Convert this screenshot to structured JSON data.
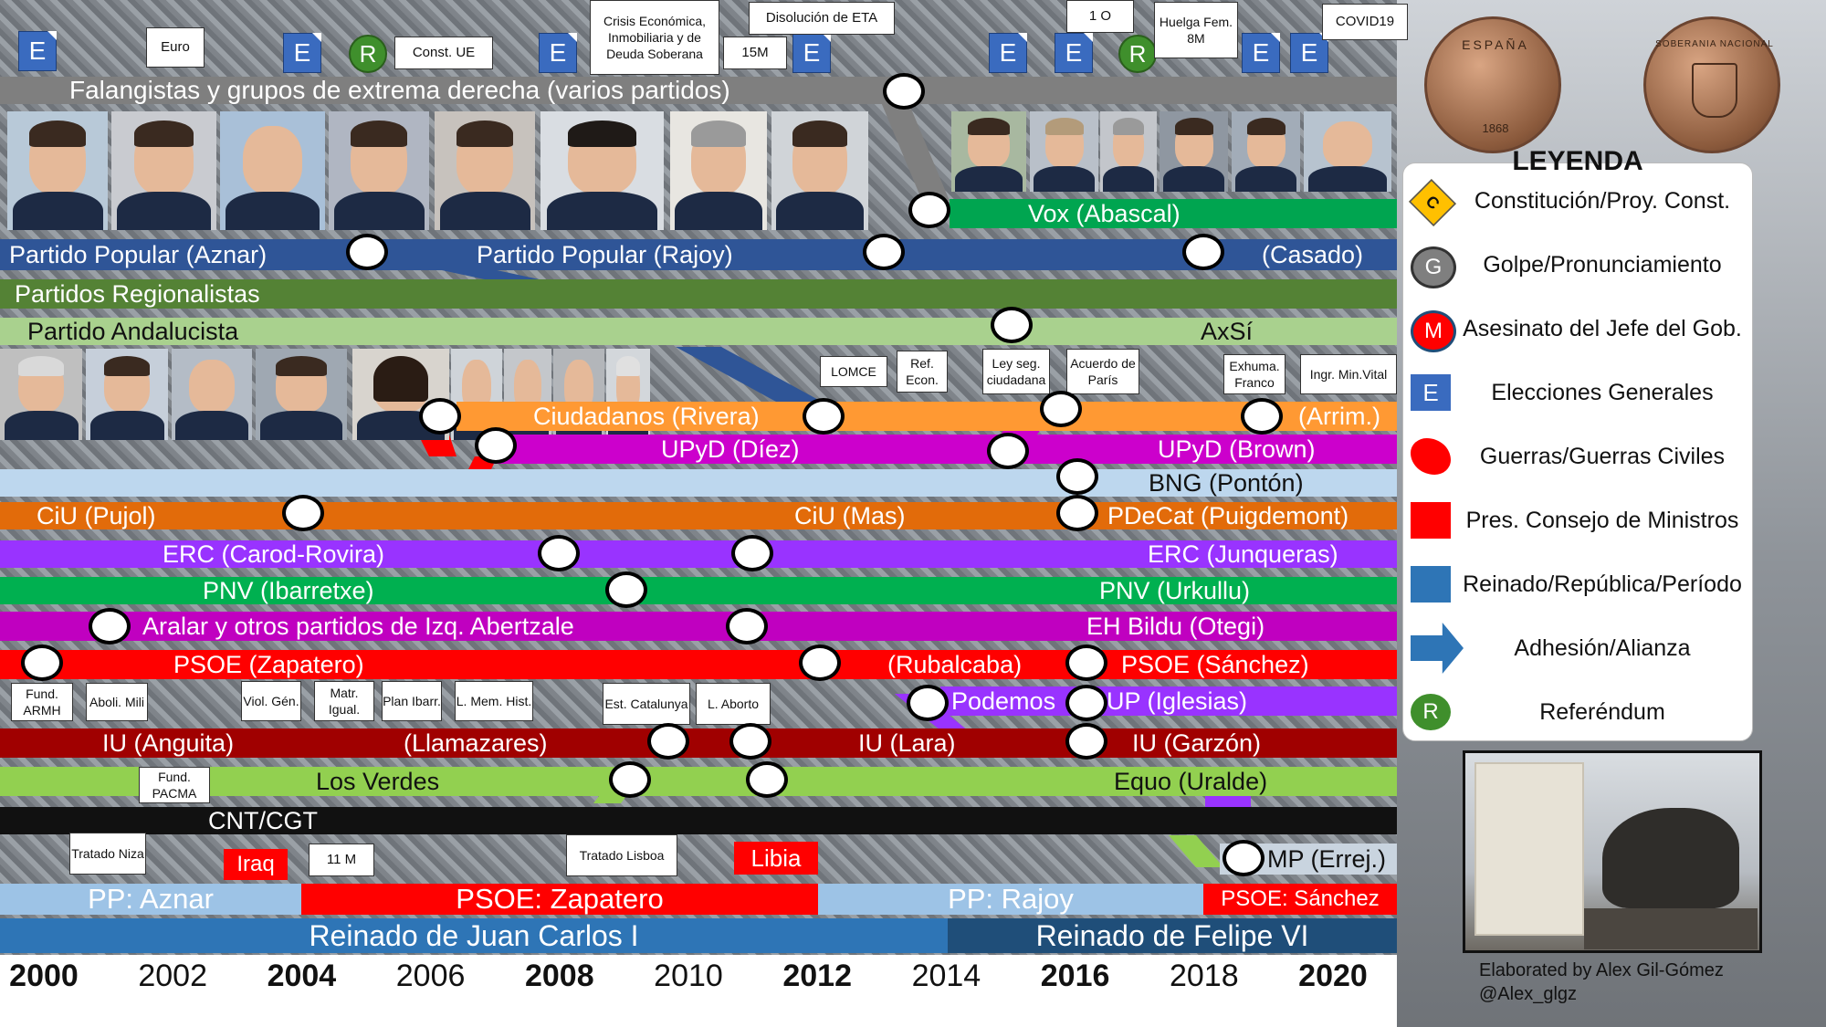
{
  "events_top": {
    "euro": "Euro",
    "const_ue": "Const. UE",
    "crisis": "Crisis Económica, Inmobiliaria y de Deuda Soberana",
    "eta": "Disolución de ETA",
    "m15": "15M",
    "o1": "1 O",
    "huelga": "Huelga Fem. 8M",
    "covid": "COVID19",
    "election_mark": "E",
    "referendum_mark": "R"
  },
  "bands": {
    "falangistas": "Falangistas y grupos de extrema derecha (varios partidos)",
    "vox": "Vox (Abascal)",
    "pp_aznar": "Partido Popular (Aznar)",
    "pp_rajoy": "Partido Popular (Rajoy)",
    "pp_casado": "(Casado)",
    "regionalistas": "Partidos Regionalistas",
    "andalucista": "Partido Andalucista",
    "axsi": "AxSí",
    "ciudadanos": "Ciudadanos (Rivera)",
    "arrim": "(Arrim.)",
    "upyd_diez": "UPyD (Díez)",
    "upyd_brown": "UPyD (Brown)",
    "bng": "BNG (Pontón)",
    "ciu_pujol": "CiU (Pujol)",
    "ciu_mas": "CiU (Mas)",
    "pdecat": "PDeCat (Puigdemont)",
    "erc_carod": "ERC (Carod-Rovira)",
    "erc_junq": "ERC (Junqueras)",
    "pnv_ibarr": "PNV (Ibarretxe)",
    "pnv_urk": "PNV (Urkullu)",
    "aralar": "Aralar y otros partidos de Izq. Abertzale",
    "bildu": "EH Bildu (Otegi)",
    "psoe_zap": "PSOE (Zapatero)",
    "psoe_rub": "(Rubalcaba)",
    "psoe_san": "PSOE (Sánchez)",
    "podemos": "Podemos",
    "up": "UP (Iglesias)",
    "iu_ang": "IU (Anguita)",
    "iu_llam": "(Llamazares)",
    "iu_lara": "IU (Lara)",
    "iu_garzon": "IU (Garzón)",
    "verdes": "Los Verdes",
    "equo": "Equo (Uralde)",
    "cnt": "CNT/CGT",
    "mp": "MP (Errej.)"
  },
  "events_mid": {
    "lomce": "LOMCE",
    "ref_econ": "Ref. Econ.",
    "ley_seg": "Ley seg. ciudadana",
    "paris": "Acuerdo de París",
    "exhuma": "Exhuma. Franco",
    "ingr": "Ingr. Min.Vital",
    "armh": "Fund. ARMH",
    "mili": "Aboli. Mili",
    "viol": "Viol. Gén.",
    "matr": "Matr. Igual.",
    "ibarr": "Plan Ibarr.",
    "memhist": "L. Mem. Hist.",
    "estcat": "Est. Catalunya",
    "aborto": "L. Aborto",
    "pacma": "Fund. PACMA",
    "niza": "Tratado Niza",
    "m11": "11 M",
    "lisboa": "Tratado Lisboa",
    "iraq": "Iraq",
    "libia": "Libia"
  },
  "governments": {
    "aznar": "PP: Aznar",
    "zapatero": "PSOE: Zapatero",
    "rajoy": "PP: Rajoy",
    "sanchez": "PSOE: Sánchez"
  },
  "reigns": {
    "juancarlos": "Reinado de Juan Carlos I",
    "felipe": "Reinado de Felipe VI"
  },
  "years": [
    "2000",
    "2002",
    "2004",
    "2006",
    "2008",
    "2010",
    "2012",
    "2014",
    "2016",
    "2018",
    "2020"
  ],
  "legend": {
    "title": "LEYENDA",
    "items": [
      {
        "mark": "C",
        "label": "Constitución/Proy. Const."
      },
      {
        "mark": "G",
        "label": "Golpe/Pronunciamiento"
      },
      {
        "mark": "M",
        "label": "Asesinato del Jefe del Gob."
      },
      {
        "mark": "E",
        "label": "Elecciones Generales"
      },
      {
        "mark": "",
        "label": "Guerras/Guerras Civiles"
      },
      {
        "mark": "",
        "label": "Pres. Consejo de Ministros"
      },
      {
        "mark": "",
        "label": "Reinado/República/Período"
      },
      {
        "mark": "",
        "label": "Adhesión/Alianza"
      },
      {
        "mark": "R",
        "label": "Referéndum"
      }
    ]
  },
  "coins": {
    "left_top": "ESPAÑA",
    "left_year": "1868",
    "right_top": "SOBERANIA NACIONAL"
  },
  "credits": {
    "line1": "Elaborated by Alex Gil-Gómez",
    "line2": "@Alex_glgz"
  },
  "colors": {
    "pp": "#2f5597",
    "psoe": "#ff0000",
    "vox": "#00a550",
    "ciudadanos": "#ff9933",
    "upyd": "#cc00cc",
    "erc": "#9933ff",
    "iu": "#a00000",
    "podemos": "#9933ff",
    "ciu": "#e26b0a",
    "pnv": "#00b050",
    "verdes": "#92d050",
    "regional": "#548235",
    "andalucista": "#a9d18e",
    "bng": "#bdd7ee",
    "reign": "#2e75b6"
  }
}
